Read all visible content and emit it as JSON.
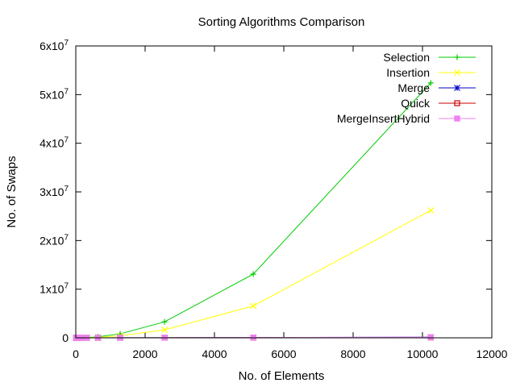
{
  "chart_data": {
    "type": "line",
    "title": "Sorting Algorithms Comparison",
    "xlabel": "No. of Elements",
    "ylabel": "No. of Swaps",
    "xlim": [
      0,
      12000
    ],
    "ylim": [
      0,
      60000000
    ],
    "x_ticks": [
      0,
      2000,
      4000,
      6000,
      8000,
      10000,
      12000
    ],
    "x_tick_labels": [
      "0",
      "2000",
      "4000",
      "6000",
      "8000",
      "10000",
      "12000"
    ],
    "y_ticks": [
      {
        "value": 0,
        "base": "0",
        "exp": ""
      },
      {
        "value": 10000000,
        "base": "1x10",
        "exp": "7"
      },
      {
        "value": 20000000,
        "base": "2x10",
        "exp": "7"
      },
      {
        "value": 30000000,
        "base": "3x10",
        "exp": "7"
      },
      {
        "value": 40000000,
        "base": "4x10",
        "exp": "7"
      },
      {
        "value": 50000000,
        "base": "5x10",
        "exp": "7"
      },
      {
        "value": 60000000,
        "base": "6x10",
        "exp": "7"
      }
    ],
    "grid": false,
    "legend_position": "top-right",
    "series": [
      {
        "name": "Selection",
        "color": "#00cc00",
        "marker": "plus",
        "x": [
          10,
          20,
          40,
          80,
          160,
          320,
          640,
          1280,
          2560,
          5120,
          10240
        ],
        "y": [
          50,
          200,
          800,
          3200,
          12800,
          51000,
          205000,
          819000,
          3280000,
          13100000,
          52400000
        ]
      },
      {
        "name": "Insertion",
        "color": "#ffff00",
        "marker": "cross",
        "x": [
          10,
          20,
          40,
          80,
          160,
          320,
          640,
          1280,
          2560,
          5120,
          10240
        ],
        "y": [
          25,
          100,
          400,
          1600,
          6400,
          25600,
          102000,
          410000,
          1640000,
          6550000,
          26200000
        ]
      },
      {
        "name": "Merge",
        "color": "#0000cc",
        "marker": "star",
        "x": [
          10,
          20,
          40,
          80,
          160,
          320,
          640,
          1280,
          2560,
          5120,
          10240
        ],
        "y": [
          34,
          88,
          216,
          520,
          1200,
          2700,
          6000,
          13300,
          29200,
          63600,
          137000
        ]
      },
      {
        "name": "Quick",
        "color": "#cc0000",
        "marker": "square-open",
        "x": [
          10,
          20,
          40,
          80,
          160,
          320,
          640,
          1280,
          2560,
          5120,
          10240
        ],
        "y": [
          20,
          50,
          120,
          280,
          640,
          1450,
          3200,
          7000,
          15300,
          33000,
          71000
        ]
      },
      {
        "name": "MergeInsertHybrid",
        "color": "#ee82ee",
        "marker": "square-filled",
        "x": [
          10,
          20,
          40,
          80,
          160,
          320,
          640,
          1280,
          2560,
          5120,
          10240
        ],
        "y": [
          30,
          80,
          200,
          480,
          1100,
          2500,
          5600,
          12400,
          27000,
          59000,
          128000
        ]
      }
    ]
  }
}
